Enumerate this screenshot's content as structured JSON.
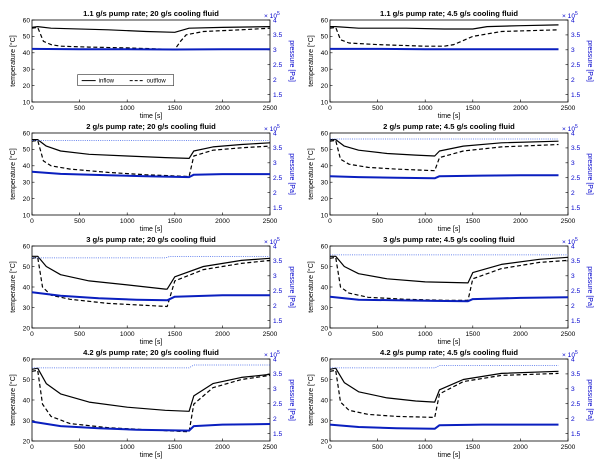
{
  "figure": {
    "series_names": [
      "inflow",
      "outflow"
    ],
    "colors": {
      "temperature": "#000000",
      "pressure_bulk": "#0a1fbf",
      "pressure_dotted": "#3f63e8",
      "right_axis": "#0000cc"
    }
  },
  "chart_data": [
    {
      "type": "line",
      "title": "1.1 g/s pump rate; 20 g/s cooling fluid",
      "xlabel": "time [s]",
      "ylabel": "temperature [°C]",
      "y2label": "pressure [Pa]",
      "xlim": [
        0,
        2500
      ],
      "ylim": [
        10,
        60
      ],
      "y2lim": [
        1.25,
        4.0
      ],
      "y2_exponent": "× 10^5",
      "xticks": [
        "0",
        "500",
        "1000",
        "1500",
        "2000",
        "2500"
      ],
      "yticks": [
        "10",
        "20",
        "30",
        "40",
        "50",
        "60"
      ],
      "y2ticks": [
        "1.5",
        "2",
        "2.5",
        "3",
        "3.5",
        "4"
      ],
      "legend": {
        "placement": "bottom-center",
        "entries": [
          "inflow",
          "outflow"
        ]
      },
      "series": [
        {
          "name": "inflow",
          "axis": "left",
          "style": "solid",
          "x": [
            0,
            60,
            200,
            800,
            1200,
            1500,
            1650,
            2000,
            2500
          ],
          "y": [
            55.5,
            56,
            55,
            54,
            53,
            52.5,
            55,
            55.5,
            56
          ]
        },
        {
          "name": "outflow",
          "axis": "left",
          "style": "dashed",
          "x": [
            0,
            60,
            120,
            200,
            300,
            600,
            1000,
            1500,
            1560,
            1620,
            1800,
            2200,
            2500
          ],
          "y": [
            55,
            55.5,
            47,
            45,
            44,
            43.5,
            43,
            42,
            47,
            51,
            53,
            54,
            55
          ]
        },
        {
          "name": "",
          "axis": "right",
          "style": "solid",
          "x": [
            0,
            500,
            1000,
            1500,
            2000,
            2500
          ],
          "y": [
            3.03,
            3.02,
            3.02,
            3.01,
            3.02,
            3.02
          ]
        }
      ]
    },
    {
      "type": "line",
      "title": "1.1 g/s pump rate; 4.5 g/s cooling fluid",
      "xlabel": "time [s]",
      "ylabel": "temperature [°C]",
      "y2label": "pressure [Pa]",
      "xlim": [
        0,
        2500
      ],
      "ylim": [
        10,
        60
      ],
      "y2lim": [
        1.25,
        4.0
      ],
      "y2_exponent": "× 10^5",
      "xticks": [
        "0",
        "500",
        "1000",
        "1500",
        "2000",
        "2500"
      ],
      "yticks": [
        "10",
        "20",
        "30",
        "40",
        "50",
        "60"
      ],
      "y2ticks": [
        "1.5",
        "2",
        "2.5",
        "3",
        "3.5",
        "4"
      ],
      "series": [
        {
          "name": "inflow",
          "axis": "left",
          "style": "solid",
          "x": [
            0,
            60,
            300,
            800,
            1200,
            1500,
            1650,
            2000,
            2400
          ],
          "y": [
            56,
            56,
            55,
            55,
            54.5,
            54.5,
            56,
            56.5,
            57
          ]
        },
        {
          "name": "outflow",
          "axis": "left",
          "style": "dashed",
          "x": [
            0,
            60,
            110,
            200,
            500,
            1000,
            1200,
            1300,
            1500,
            1800,
            2400
          ],
          "y": [
            55,
            55.5,
            48,
            46,
            45,
            44,
            44,
            45,
            50,
            53,
            54
          ]
        },
        {
          "name": "",
          "axis": "right",
          "style": "solid",
          "x": [
            0,
            500,
            1000,
            1500,
            2000,
            2400
          ],
          "y": [
            3.03,
            3.03,
            3.02,
            3.02,
            3.02,
            3.02
          ]
        }
      ]
    },
    {
      "type": "line",
      "title": "2 g/s pump rate; 20 g/s cooling fluid",
      "xlabel": "time [s]",
      "ylabel": "temperature [°C]",
      "y2label": "pressure [Pa]",
      "xlim": [
        0,
        2500
      ],
      "ylim": [
        10,
        60
      ],
      "y2lim": [
        1.25,
        4.0
      ],
      "y2_exponent": "× 10^5",
      "xticks": [
        "0",
        "500",
        "1000",
        "1500",
        "2000",
        "2500"
      ],
      "yticks": [
        "10",
        "20",
        "30",
        "40",
        "50",
        "60"
      ],
      "y2ticks": [
        "1.5",
        "2",
        "2.5",
        "3",
        "3.5",
        "4"
      ],
      "series": [
        {
          "name": "inflow",
          "axis": "left",
          "style": "solid",
          "x": [
            0,
            60,
            150,
            300,
            600,
            1000,
            1400,
            1650,
            1700,
            1900,
            2200,
            2500
          ],
          "y": [
            56,
            56,
            52,
            49,
            47,
            46,
            45,
            44.5,
            49,
            51.5,
            53,
            54
          ]
        },
        {
          "name": "outflow",
          "axis": "left",
          "style": "dashed",
          "x": [
            0,
            60,
            120,
            200,
            400,
            800,
            1200,
            1650,
            1700,
            1900,
            2200,
            2500
          ],
          "y": [
            55,
            55.5,
            43,
            40,
            38,
            36,
            34.5,
            33.5,
            46,
            49.5,
            51,
            52
          ]
        },
        {
          "name": "",
          "axis": "right",
          "style": "solid",
          "x": [
            0,
            300,
            800,
            1200,
            1650,
            1700,
            2000,
            2500
          ],
          "y": [
            2.7,
            2.63,
            2.58,
            2.55,
            2.52,
            2.6,
            2.62,
            2.62
          ]
        },
        {
          "name": "",
          "axis": "right",
          "style": "dotted",
          "x": [
            0,
            2500
          ],
          "y": [
            3.75,
            3.75
          ]
        }
      ]
    },
    {
      "type": "line",
      "title": "2 g/s pump rate; 4.5 g/s cooling fluid",
      "xlabel": "time [s]",
      "ylabel": "temperature [°C]",
      "y2label": "pressure [Pa]",
      "xlim": [
        0,
        2500
      ],
      "ylim": [
        10,
        60
      ],
      "y2lim": [
        1.25,
        4.0
      ],
      "y2_exponent": "× 10^5",
      "xticks": [
        "0",
        "500",
        "1000",
        "1500",
        "2000",
        "2500"
      ],
      "yticks": [
        "10",
        "20",
        "30",
        "40",
        "50",
        "60"
      ],
      "y2ticks": [
        "1.5",
        "2",
        "2.5",
        "3",
        "3.5",
        "4"
      ],
      "series": [
        {
          "name": "inflow",
          "axis": "left",
          "style": "solid",
          "x": [
            0,
            60,
            150,
            300,
            600,
            900,
            1100,
            1150,
            1400,
            1800,
            2400
          ],
          "y": [
            56,
            56,
            52,
            49.5,
            47.5,
            46.5,
            46,
            49,
            52,
            54,
            55
          ]
        },
        {
          "name": "outflow",
          "axis": "left",
          "style": "dashed",
          "x": [
            0,
            60,
            110,
            200,
            400,
            700,
            1100,
            1150,
            1400,
            1800,
            2400
          ],
          "y": [
            55,
            55.5,
            44,
            41,
            39,
            38,
            37,
            45,
            49,
            51.5,
            53
          ]
        },
        {
          "name": "",
          "axis": "right",
          "style": "solid",
          "x": [
            0,
            300,
            700,
            1100,
            1150,
            1600,
            2000,
            2400
          ],
          "y": [
            2.55,
            2.52,
            2.5,
            2.48,
            2.55,
            2.57,
            2.58,
            2.58
          ]
        },
        {
          "name": "",
          "axis": "right",
          "style": "dotted",
          "x": [
            0,
            2400
          ],
          "y": [
            3.8,
            3.8
          ]
        }
      ]
    },
    {
      "type": "line",
      "title": "3 g/s pump rate; 20 g/s cooling fluid",
      "xlabel": "time [s]",
      "ylabel": "temperature [°C]",
      "y2label": "pressure [Pa]",
      "xlim": [
        0,
        2500
      ],
      "ylim": [
        20,
        60
      ],
      "y2lim": [
        1.25,
        4.0
      ],
      "y2_exponent": "× 10^5",
      "xticks": [
        "0",
        "500",
        "1000",
        "1500",
        "2000",
        "2500"
      ],
      "yticks": [
        "20",
        "30",
        "40",
        "50",
        "60"
      ],
      "y2ticks": [
        "1.5",
        "2",
        "2.5",
        "3",
        "3.5",
        "4"
      ],
      "series": [
        {
          "name": "inflow",
          "axis": "left",
          "style": "solid",
          "x": [
            0,
            60,
            150,
            300,
            600,
            1000,
            1400,
            1420,
            1500,
            1800,
            2200,
            2500
          ],
          "y": [
            55,
            55,
            50,
            46,
            43,
            41,
            39,
            39,
            45,
            50,
            53,
            54
          ]
        },
        {
          "name": "outflow",
          "axis": "left",
          "style": "dashed",
          "x": [
            0,
            60,
            110,
            200,
            400,
            800,
            1200,
            1420,
            1500,
            1800,
            2200,
            2500
          ],
          "y": [
            54,
            54.5,
            40,
            36,
            34,
            32,
            31,
            30.5,
            43,
            48.5,
            51.5,
            53
          ]
        },
        {
          "name": "",
          "axis": "right",
          "style": "solid",
          "x": [
            0,
            300,
            700,
            1100,
            1420,
            1500,
            2000,
            2500
          ],
          "y": [
            2.45,
            2.33,
            2.25,
            2.2,
            2.18,
            2.3,
            2.35,
            2.35
          ]
        },
        {
          "name": "",
          "axis": "right",
          "style": "dotted",
          "x": [
            0,
            1400,
            1450,
            2500
          ],
          "y": [
            3.6,
            3.6,
            3.65,
            3.65
          ]
        }
      ]
    },
    {
      "type": "line",
      "title": "3 g/s pump rate; 4.5 g/s cooling fluid",
      "xlabel": "time [s]",
      "ylabel": "temperature [°C]",
      "y2label": "pressure [Pa]",
      "xlim": [
        0,
        2500
      ],
      "ylim": [
        20,
        60
      ],
      "y2lim": [
        1.25,
        4.0
      ],
      "y2_exponent": "× 10^5",
      "xticks": [
        "0",
        "500",
        "1000",
        "1500",
        "2000",
        "2500"
      ],
      "yticks": [
        "20",
        "30",
        "40",
        "50",
        "60"
      ],
      "y2ticks": [
        "1.5",
        "2",
        "2.5",
        "3",
        "3.5",
        "4"
      ],
      "series": [
        {
          "name": "inflow",
          "axis": "left",
          "style": "solid",
          "x": [
            0,
            60,
            150,
            300,
            600,
            1000,
            1450,
            1500,
            1800,
            2200,
            2500
          ],
          "y": [
            55,
            55,
            50,
            46.5,
            44,
            42.5,
            42,
            47,
            51,
            53.5,
            54.5
          ]
        },
        {
          "name": "outflow",
          "axis": "left",
          "style": "dashed",
          "x": [
            0,
            60,
            110,
            200,
            400,
            800,
            1200,
            1450,
            1500,
            1800,
            2200,
            2500
          ],
          "y": [
            54,
            54.5,
            40,
            37,
            35,
            34,
            33.5,
            33.5,
            44,
            49,
            52,
            53
          ]
        },
        {
          "name": "",
          "axis": "right",
          "style": "solid",
          "x": [
            0,
            300,
            700,
            1100,
            1450,
            1500,
            2000,
            2500
          ],
          "y": [
            2.3,
            2.2,
            2.18,
            2.16,
            2.15,
            2.22,
            2.26,
            2.28
          ]
        },
        {
          "name": "",
          "axis": "right",
          "style": "dotted",
          "x": [
            0,
            2500
          ],
          "y": [
            3.7,
            3.7
          ]
        }
      ]
    },
    {
      "type": "line",
      "title": "4.2 g/s pump rate; 20 g/s cooling fluid",
      "xlabel": "time [s]",
      "ylabel": "temperature [°C]",
      "y2label": "pressure [Pa]",
      "xlim": [
        0,
        2500
      ],
      "ylim": [
        20,
        60
      ],
      "y2lim": [
        1.25,
        4.0
      ],
      "y2_exponent": "× 10^5",
      "xticks": [
        "0",
        "500",
        "1000",
        "1500",
        "2000",
        "2500"
      ],
      "yticks": [
        "20",
        "30",
        "40",
        "50",
        "60"
      ],
      "y2ticks": [
        "1.5",
        "2",
        "2.5",
        "3",
        "3.5",
        "4"
      ],
      "series": [
        {
          "name": "inflow",
          "axis": "left",
          "style": "solid",
          "x": [
            0,
            60,
            150,
            300,
            600,
            1000,
            1400,
            1650,
            1700,
            1900,
            2200,
            2500
          ],
          "y": [
            55,
            55.5,
            48,
            43,
            39,
            36.5,
            35,
            34.5,
            42,
            48,
            51,
            52.5
          ]
        },
        {
          "name": "outflow",
          "axis": "left",
          "style": "dashed",
          "x": [
            0,
            60,
            110,
            200,
            400,
            800,
            1200,
            1650,
            1700,
            1900,
            2200,
            2500
          ],
          "y": [
            54,
            54.5,
            38,
            32,
            28.5,
            26.5,
            25.5,
            24.5,
            38,
            46,
            50,
            52
          ]
        },
        {
          "name": "",
          "axis": "right",
          "style": "solid",
          "x": [
            0,
            300,
            700,
            1100,
            1650,
            1700,
            2000,
            2500
          ],
          "y": [
            1.9,
            1.75,
            1.68,
            1.63,
            1.6,
            1.75,
            1.8,
            1.82
          ]
        },
        {
          "name": "",
          "axis": "right",
          "style": "dotted",
          "x": [
            0,
            1650,
            1700,
            2500
          ],
          "y": [
            3.7,
            3.7,
            3.8,
            3.8
          ]
        }
      ]
    },
    {
      "type": "line",
      "title": "4.2 g/s pump rate; 4.5 g/s cooling fluid",
      "xlabel": "time [s]",
      "ylabel": "temperature [°C]",
      "y2label": "pressure [Pa]",
      "xlim": [
        0,
        2500
      ],
      "ylim": [
        20,
        60
      ],
      "y2lim": [
        1.25,
        4.0
      ],
      "y2_exponent": "× 10^5",
      "xticks": [
        "0",
        "500",
        "1000",
        "1500",
        "2000",
        "2500"
      ],
      "yticks": [
        "20",
        "30",
        "40",
        "50",
        "60"
      ],
      "y2ticks": [
        "1.5",
        "2",
        "2.5",
        "3",
        "3.5",
        "4"
      ],
      "series": [
        {
          "name": "inflow",
          "axis": "left",
          "style": "solid",
          "x": [
            0,
            60,
            150,
            300,
            600,
            900,
            1100,
            1150,
            1400,
            1800,
            2400
          ],
          "y": [
            55,
            55.5,
            48.5,
            44,
            41,
            39.5,
            39,
            45,
            50,
            53,
            54
          ]
        },
        {
          "name": "outflow",
          "axis": "left",
          "style": "dashed",
          "x": [
            0,
            60,
            110,
            200,
            400,
            700,
            1100,
            1150,
            1400,
            1800,
            2400
          ],
          "y": [
            54,
            54.5,
            39,
            35,
            33,
            32,
            31.5,
            43,
            49,
            52,
            53
          ]
        },
        {
          "name": "",
          "axis": "right",
          "style": "solid",
          "x": [
            0,
            300,
            700,
            1100,
            1150,
            1600,
            2000,
            2400
          ],
          "y": [
            1.8,
            1.72,
            1.68,
            1.66,
            1.78,
            1.8,
            1.8,
            1.8
          ]
        },
        {
          "name": "",
          "axis": "right",
          "style": "dotted",
          "x": [
            0,
            1100,
            1150,
            2400
          ],
          "y": [
            3.7,
            3.7,
            3.78,
            3.78
          ]
        }
      ]
    }
  ]
}
